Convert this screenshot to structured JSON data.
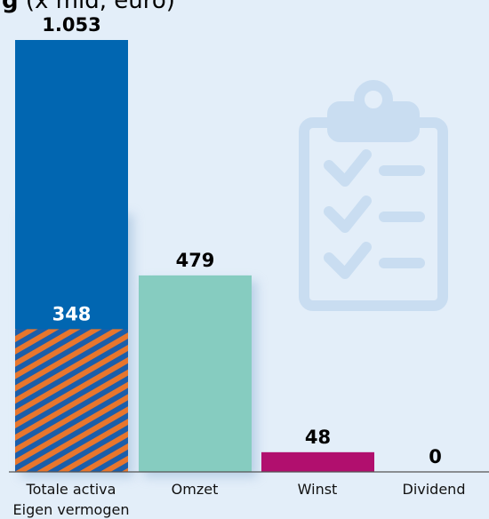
{
  "title_fragment": {
    "bold": "g",
    "rest": " (x mld, euro)"
  },
  "colors": {
    "background": "#e3eef9",
    "totale_activa": "#0166b1",
    "eigen_vermogen_stripe_a": "#e8762d",
    "eigen_vermogen_stripe_b": "#1b5eaa",
    "omzet": "#86ccc0",
    "winst": "#b10f6e",
    "watermark": "#c9ddf1"
  },
  "chart_data": {
    "type": "bar",
    "categories": [
      "Totale activa",
      "Omzet",
      "Winst",
      "Dividend"
    ],
    "category_sublabels": [
      "Eigen vermogen",
      "",
      "",
      ""
    ],
    "values": [
      1053,
      479,
      48,
      0
    ],
    "value_labels": [
      "1.053",
      "479",
      "48",
      "0"
    ],
    "stacked_inner": {
      "category": "Totale activa",
      "name": "Eigen vermogen",
      "value": 348,
      "label": "348",
      "pattern": "hatched"
    },
    "ylim": [
      0,
      1053
    ],
    "grid": false,
    "legend": "none",
    "watermark_icon": "clipboard-checklist-icon"
  }
}
